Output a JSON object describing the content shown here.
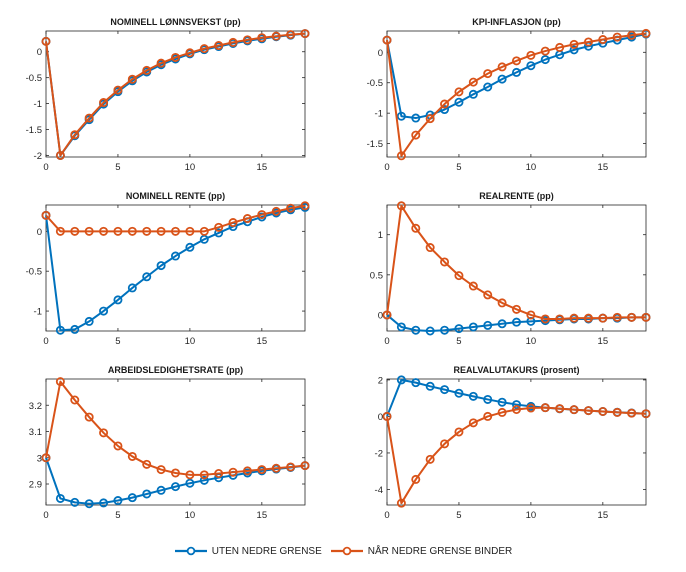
{
  "chart_data": {
    "type": "line",
    "legend": {
      "placement": "bottom-center",
      "entries": [
        {
          "name": "UTEN NEDRE GRENSE",
          "color": "#0072BD",
          "marker": "circle"
        },
        {
          "name": "NÅR NEDRE GRENSE BINDER",
          "color": "#D95319",
          "marker": "circle"
        }
      ]
    },
    "panels": [
      {
        "title": "NOMINELL LØNNSVEKST (pp)",
        "x": [
          0,
          1,
          2,
          3,
          4,
          5,
          6,
          7,
          8,
          9,
          10,
          11,
          12,
          13,
          14,
          15,
          16,
          17,
          18
        ],
        "xlim": [
          0,
          18
        ],
        "xticks": [
          0,
          5,
          10,
          15
        ],
        "ylim": [
          -2.03,
          0.4
        ],
        "yticks": [
          -2,
          -1.5,
          -1,
          -0.5,
          0
        ],
        "ytick_labels": [
          "-2",
          "-1.5",
          "-1",
          "-0.5",
          "0"
        ],
        "series": [
          {
            "name": "UTEN NEDRE GRENSE",
            "values": [
              0.2,
              -2.0,
              -1.62,
              -1.31,
              -1.01,
              -0.77,
              -0.56,
              -0.39,
              -0.25,
              -0.14,
              -0.04,
              0.04,
              0.1,
              0.16,
              0.21,
              0.25,
              0.29,
              0.32,
              0.35
            ]
          },
          {
            "name": "NÅR NEDRE GRENSE BINDER",
            "values": [
              0.2,
              -2.0,
              -1.6,
              -1.28,
              -0.98,
              -0.74,
              -0.53,
              -0.36,
              -0.22,
              -0.11,
              -0.02,
              0.06,
              0.12,
              0.18,
              0.23,
              0.27,
              0.3,
              0.33,
              0.35
            ]
          }
        ]
      },
      {
        "title": "KPI-INFLASJON (pp)",
        "x": [
          0,
          1,
          2,
          3,
          4,
          5,
          6,
          7,
          8,
          9,
          10,
          11,
          12,
          13,
          14,
          15,
          16,
          17,
          18
        ],
        "xlim": [
          0,
          18
        ],
        "xticks": [
          0,
          5,
          10,
          15
        ],
        "ylim": [
          -1.72,
          0.35
        ],
        "yticks": [
          -1.5,
          -1,
          -0.5,
          0
        ],
        "ytick_labels": [
          "-1.5",
          "-1",
          "-0.5",
          "0"
        ],
        "series": [
          {
            "name": "UTEN NEDRE GRENSE",
            "values": [
              0.2,
              -1.05,
              -1.08,
              -1.03,
              -0.94,
              -0.82,
              -0.69,
              -0.57,
              -0.44,
              -0.33,
              -0.22,
              -0.12,
              -0.04,
              0.04,
              0.1,
              0.15,
              0.2,
              0.25,
              0.3
            ]
          },
          {
            "name": "NÅR NEDRE GRENSE BINDER",
            "values": [
              0.2,
              -1.7,
              -1.36,
              -1.09,
              -0.85,
              -0.65,
              -0.49,
              -0.35,
              -0.24,
              -0.14,
              -0.05,
              0.02,
              0.08,
              0.13,
              0.17,
              0.21,
              0.25,
              0.28,
              0.31
            ]
          }
        ]
      },
      {
        "title": "NOMINELL RENTE (pp)",
        "x": [
          0,
          1,
          2,
          3,
          4,
          5,
          6,
          7,
          8,
          9,
          10,
          11,
          12,
          13,
          14,
          15,
          16,
          17,
          18
        ],
        "xlim": [
          0,
          18
        ],
        "xticks": [
          0,
          5,
          10,
          15
        ],
        "ylim": [
          -1.25,
          0.33
        ],
        "yticks": [
          -1,
          -0.5,
          0
        ],
        "ytick_labels": [
          "-1",
          "-0.5",
          "0"
        ],
        "series": [
          {
            "name": "UTEN NEDRE GRENSE",
            "values": [
              0.2,
              -1.24,
              -1.23,
              -1.13,
              -1.0,
              -0.86,
              -0.71,
              -0.57,
              -0.43,
              -0.31,
              -0.2,
              -0.1,
              -0.02,
              0.06,
              0.12,
              0.18,
              0.23,
              0.27,
              0.3
            ]
          },
          {
            "name": "NÅR NEDRE GRENSE BINDER",
            "values": [
              0.2,
              0,
              0,
              0,
              0,
              0,
              0,
              0,
              0,
              0,
              0,
              0,
              0.05,
              0.11,
              0.16,
              0.21,
              0.25,
              0.29,
              0.32
            ]
          }
        ]
      },
      {
        "title": "REALRENTE (pp)",
        "x": [
          0,
          1,
          2,
          3,
          4,
          5,
          6,
          7,
          8,
          9,
          10,
          11,
          12,
          13,
          14,
          15,
          16,
          17,
          18
        ],
        "xlim": [
          0,
          18
        ],
        "xticks": [
          0,
          5,
          10,
          15
        ],
        "ylim": [
          -0.2,
          1.37
        ],
        "yticks": [
          0,
          0.5,
          1
        ],
        "ytick_labels": [
          "0",
          "0.5",
          "1"
        ],
        "series": [
          {
            "name": "UTEN NEDRE GRENSE",
            "values": [
              0,
              -0.15,
              -0.19,
              -0.2,
              -0.19,
              -0.17,
              -0.15,
              -0.13,
              -0.11,
              -0.09,
              -0.08,
              -0.07,
              -0.06,
              -0.05,
              -0.05,
              -0.04,
              -0.04,
              -0.03,
              -0.03
            ]
          },
          {
            "name": "NÅR NEDRE GRENSE BINDER",
            "values": [
              0,
              1.36,
              1.08,
              0.84,
              0.66,
              0.49,
              0.36,
              0.25,
              0.15,
              0.07,
              0.0,
              -0.05,
              -0.05,
              -0.04,
              -0.04,
              -0.04,
              -0.03,
              -0.03,
              -0.03
            ]
          }
        ]
      },
      {
        "title": "ARBEIDSLEDIGHETSRATE (pp)",
        "x": [
          0,
          1,
          2,
          3,
          4,
          5,
          6,
          7,
          8,
          9,
          10,
          11,
          12,
          13,
          14,
          15,
          16,
          17,
          18
        ],
        "xlim": [
          0,
          18
        ],
        "xticks": [
          0,
          5,
          10,
          15
        ],
        "ylim": [
          2.82,
          3.3
        ],
        "yticks": [
          2.9,
          3.0,
          3.1,
          3.2
        ],
        "ytick_labels": [
          "2.9",
          "3",
          "3.1",
          "3.2"
        ],
        "series": [
          {
            "name": "UTEN NEDRE GRENSE",
            "values": [
              3.0,
              2.845,
              2.83,
              2.825,
              2.828,
              2.837,
              2.848,
              2.862,
              2.876,
              2.89,
              2.903,
              2.914,
              2.924,
              2.933,
              2.942,
              2.95,
              2.957,
              2.963,
              2.97
            ]
          },
          {
            "name": "NÅR NEDRE GRENSE BINDER",
            "values": [
              3.0,
              3.29,
              3.22,
              3.155,
              3.095,
              3.045,
              3.005,
              2.975,
              2.955,
              2.942,
              2.935,
              2.935,
              2.94,
              2.945,
              2.95,
              2.955,
              2.96,
              2.965,
              2.97
            ]
          }
        ]
      },
      {
        "title": "REALVALUTAKURS (prosent)",
        "x": [
          0,
          1,
          2,
          3,
          4,
          5,
          6,
          7,
          8,
          9,
          10,
          11,
          12,
          13,
          14,
          15,
          16,
          17,
          18
        ],
        "xlim": [
          0,
          18
        ],
        "xticks": [
          0,
          5,
          10,
          15
        ],
        "ylim": [
          -4.85,
          2.05
        ],
        "yticks": [
          -4,
          -2,
          0,
          2
        ],
        "ytick_labels": [
          "-4",
          "-2",
          "0",
          "2"
        ],
        "series": [
          {
            "name": "UTEN NEDRE GRENSE",
            "values": [
              0,
              2.0,
              1.85,
              1.65,
              1.47,
              1.27,
              1.1,
              0.93,
              0.78,
              0.65,
              0.55,
              0.48,
              0.42,
              0.37,
              0.32,
              0.27,
              0.23,
              0.19,
              0.15
            ]
          },
          {
            "name": "NÅR NEDRE GRENSE BINDER",
            "values": [
              0,
              -4.75,
              -3.45,
              -2.35,
              -1.5,
              -0.85,
              -0.35,
              0.0,
              0.22,
              0.38,
              0.46,
              0.48,
              0.43,
              0.37,
              0.32,
              0.27,
              0.22,
              0.18,
              0.15
            ]
          }
        ]
      }
    ]
  }
}
